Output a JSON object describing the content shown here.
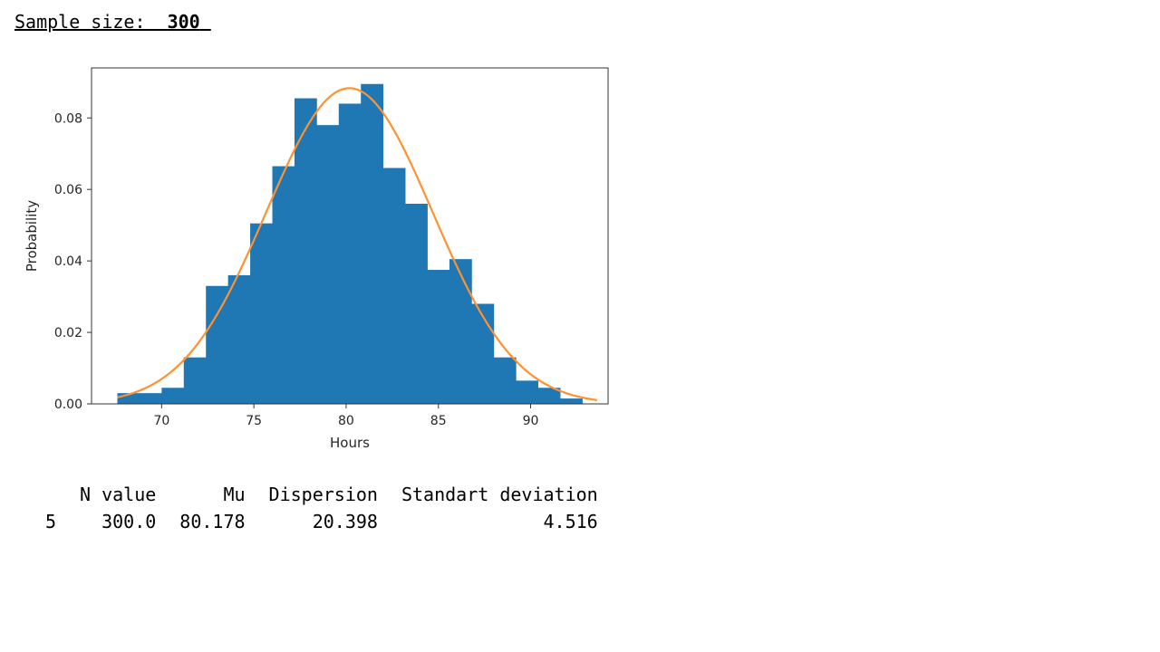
{
  "header": {
    "label": "Sample size:",
    "value": "300"
  },
  "chart_data": {
    "type": "bar",
    "xlabel": "Hours",
    "ylabel": "Probability",
    "xlim": [
      66.2,
      94.2
    ],
    "ylim": [
      0,
      0.094
    ],
    "x_ticks": [
      70,
      75,
      80,
      85,
      90
    ],
    "y_ticks": [
      0.0,
      0.02,
      0.04,
      0.06,
      0.08
    ],
    "x_tick_labels": [
      "70",
      "75",
      "80",
      "85",
      "90"
    ],
    "y_tick_labels": [
      "0.00",
      "0.02",
      "0.04",
      "0.06",
      "0.08"
    ],
    "bins": [
      {
        "x0": 67.6,
        "x1": 68.8,
        "value": 0.003
      },
      {
        "x0": 68.8,
        "x1": 70.0,
        "value": 0.003
      },
      {
        "x0": 70.0,
        "x1": 71.2,
        "value": 0.0045
      },
      {
        "x0": 71.2,
        "x1": 72.4,
        "value": 0.013
      },
      {
        "x0": 72.4,
        "x1": 73.6,
        "value": 0.033
      },
      {
        "x0": 73.6,
        "x1": 74.8,
        "value": 0.036
      },
      {
        "x0": 74.8,
        "x1": 76.0,
        "value": 0.0505
      },
      {
        "x0": 76.0,
        "x1": 77.2,
        "value": 0.0665
      },
      {
        "x0": 77.2,
        "x1": 78.4,
        "value": 0.0855
      },
      {
        "x0": 78.4,
        "x1": 79.6,
        "value": 0.078
      },
      {
        "x0": 79.6,
        "x1": 80.8,
        "value": 0.084
      },
      {
        "x0": 80.8,
        "x1": 82.0,
        "value": 0.0895
      },
      {
        "x0": 82.0,
        "x1": 83.2,
        "value": 0.066
      },
      {
        "x0": 83.2,
        "x1": 84.4,
        "value": 0.056
      },
      {
        "x0": 84.4,
        "x1": 85.6,
        "value": 0.0375
      },
      {
        "x0": 85.6,
        "x1": 86.8,
        "value": 0.0405
      },
      {
        "x0": 86.8,
        "x1": 88.0,
        "value": 0.028
      },
      {
        "x0": 88.0,
        "x1": 89.2,
        "value": 0.013
      },
      {
        "x0": 89.2,
        "x1": 90.4,
        "value": 0.0065
      },
      {
        "x0": 90.4,
        "x1": 91.6,
        "value": 0.0045
      },
      {
        "x0": 91.6,
        "x1": 92.8,
        "value": 0.0015
      }
    ],
    "curve": {
      "type": "normal_pdf",
      "mu": 80.178,
      "sigma": 4.516,
      "x_range": [
        67.6,
        93.6
      ]
    },
    "grid": false,
    "legend": "none",
    "colors": {
      "bars": "#1f77b4",
      "curve": "#ff9130",
      "axes": "#333333"
    }
  },
  "table": {
    "columns": [
      "N value",
      "Mu",
      "Dispersion",
      "Standart deviation"
    ],
    "rows": [
      {
        "index": "5",
        "cells": [
          "300.0",
          "80.178",
          "20.398",
          "4.516"
        ]
      }
    ]
  }
}
